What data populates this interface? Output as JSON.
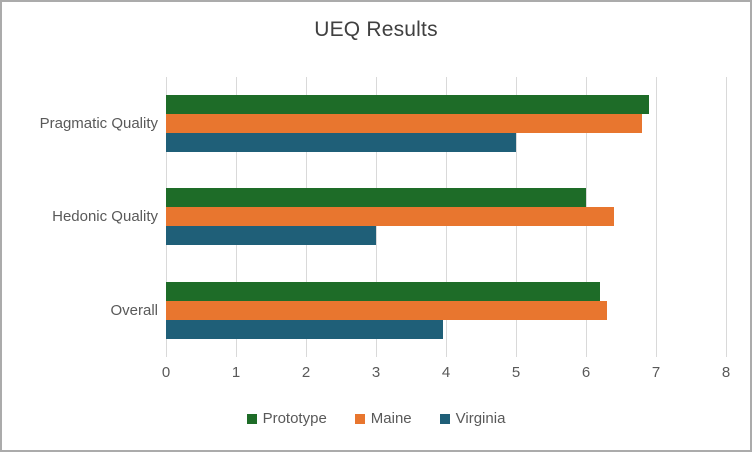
{
  "title": "UEQ Results",
  "chart_data": {
    "type": "bar",
    "orientation": "horizontal",
    "title": "UEQ Results",
    "categories": [
      "Pragmatic Quality",
      "Hedonic Quality",
      "Overall"
    ],
    "series": [
      {
        "name": "Prototype",
        "color": "#1E6C28",
        "values": [
          6.9,
          6.0,
          6.2
        ]
      },
      {
        "name": "Maine",
        "color": "#E8762F",
        "values": [
          6.8,
          6.4,
          6.3
        ]
      },
      {
        "name": "Virginia",
        "color": "#1F5F78",
        "values": [
          5.0,
          3.0,
          3.95
        ]
      }
    ],
    "xlim": [
      0,
      8
    ],
    "x_ticks": [
      "0",
      "1",
      "2",
      "3",
      "4",
      "5",
      "6",
      "7",
      "8"
    ],
    "grid": true,
    "legend_position": "bottom",
    "text_color": "#595959",
    "title_color": "#404040",
    "gridline_color": "#D9D9D9"
  }
}
